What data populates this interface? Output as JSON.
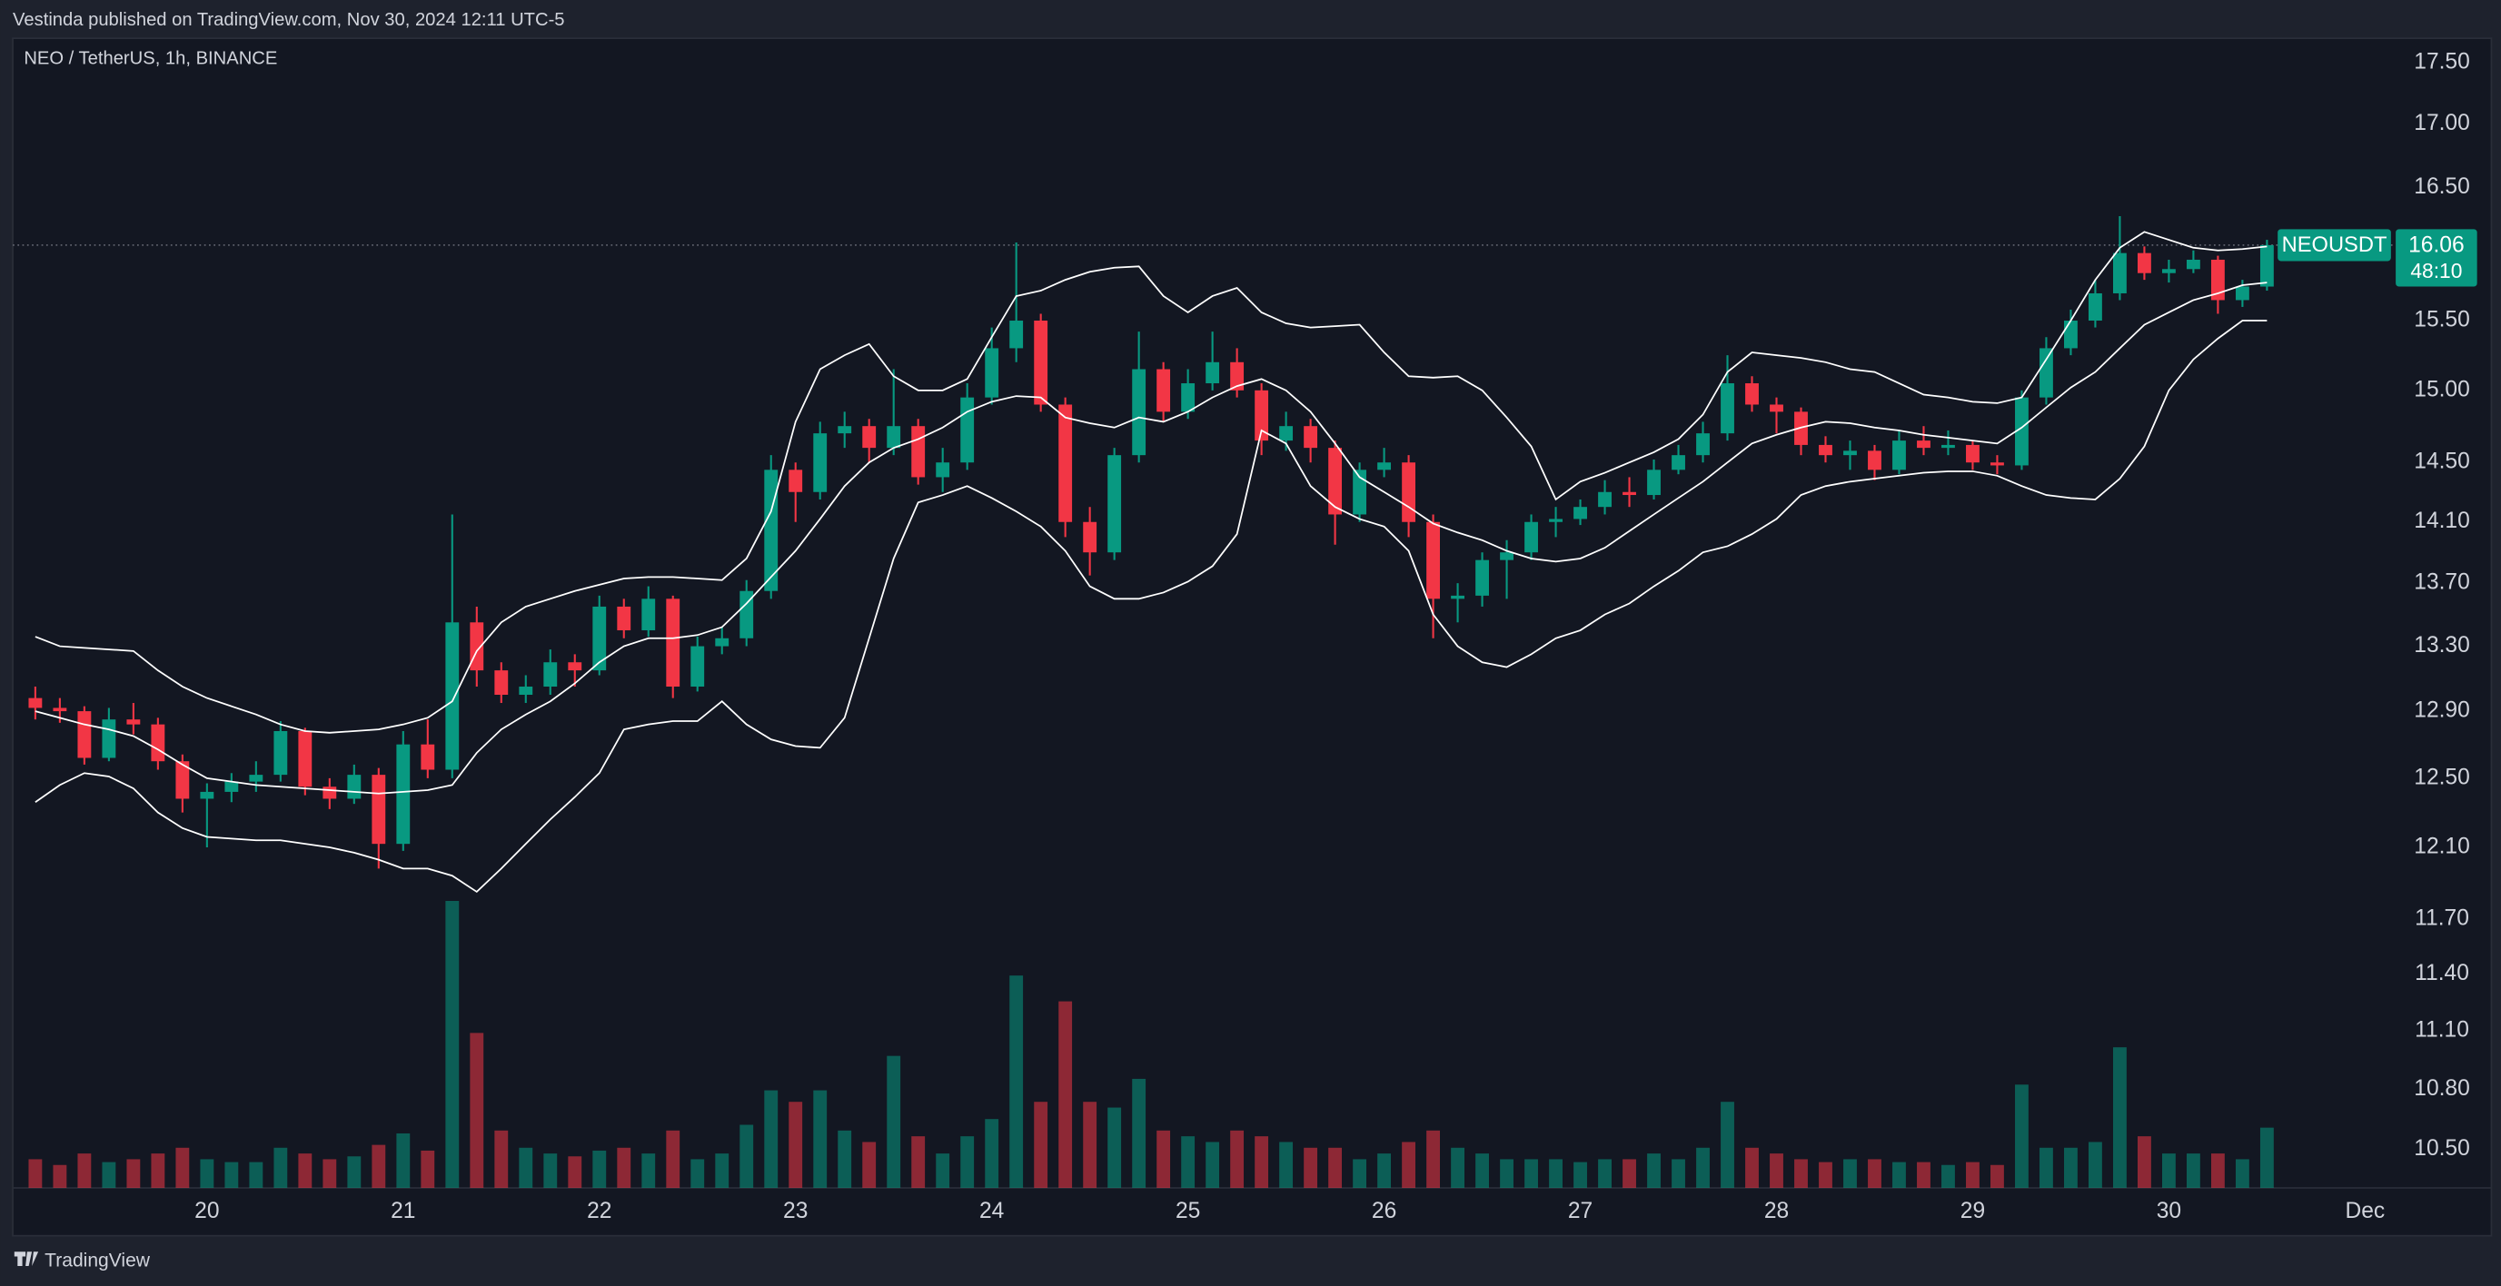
{
  "chart_data": {
    "type": "candlestick",
    "header": "Vestinda published on TradingView.com, Nov 30, 2024 12:11 UTC-5",
    "symbol_label": "NEO / TetherUS, 1h, BINANCE",
    "footer": "TradingView",
    "log_scale": true,
    "up_color": "#089981",
    "down_color": "#f23645",
    "band_color": "#ffffff",
    "xlim": [
      19.01,
      31.14
    ],
    "xticks": [
      {
        "value": 20,
        "label": "20"
      },
      {
        "value": 21,
        "label": "21"
      },
      {
        "value": 22,
        "label": "22"
      },
      {
        "value": 23,
        "label": "23"
      },
      {
        "value": 24,
        "label": "24"
      },
      {
        "value": 25,
        "label": "25"
      },
      {
        "value": 26,
        "label": "26"
      },
      {
        "value": 27,
        "label": "27"
      },
      {
        "value": 28,
        "label": "28"
      },
      {
        "value": 29,
        "label": "29"
      },
      {
        "value": 30,
        "label": "30"
      },
      {
        "value": 31,
        "label": "Dec"
      }
    ],
    "ylim": [
      10.31,
      17.7
    ],
    "yticks": [
      {
        "value": 17.5,
        "label": "17.50"
      },
      {
        "value": 17,
        "label": "17.00"
      },
      {
        "value": 16.5,
        "label": "16.50"
      },
      {
        "value": 15.5,
        "label": "15.50"
      },
      {
        "value": 15,
        "label": "15.00"
      },
      {
        "value": 14.5,
        "label": "14.50"
      },
      {
        "value": 14.1,
        "label": "14.10"
      },
      {
        "value": 13.7,
        "label": "13.70"
      },
      {
        "value": 13.3,
        "label": "13.30"
      },
      {
        "value": 12.9,
        "label": "12.90"
      },
      {
        "value": 12.5,
        "label": "12.50"
      },
      {
        "value": 12.1,
        "label": "12.10"
      },
      {
        "value": 11.7,
        "label": "11.70"
      },
      {
        "value": 11.4,
        "label": "11.40"
      },
      {
        "value": 11.1,
        "label": "11.10"
      },
      {
        "value": 10.8,
        "label": "10.80"
      },
      {
        "value": 10.5,
        "label": "10.50"
      }
    ],
    "volume_lim": [
      0,
      100
    ],
    "last_price": {
      "symbol": "NEOUSDT",
      "value": 16.06,
      "countdown": "48:10"
    },
    "x": [
      19.125,
      19.25,
      19.375,
      19.5,
      19.625,
      19.75,
      19.875,
      20,
      20.125,
      20.25,
      20.375,
      20.5,
      20.625,
      20.75,
      20.875,
      21,
      21.125,
      21.25,
      21.375,
      21.5,
      21.625,
      21.75,
      21.875,
      22,
      22.125,
      22.25,
      22.375,
      22.5,
      22.625,
      22.75,
      22.875,
      23,
      23.125,
      23.25,
      23.375,
      23.5,
      23.625,
      23.75,
      23.875,
      24,
      24.125,
      24.25,
      24.375,
      24.5,
      24.625,
      24.75,
      24.875,
      25,
      25.125,
      25.25,
      25.375,
      25.5,
      25.625,
      25.75,
      25.875,
      26,
      26.125,
      26.25,
      26.375,
      26.5,
      26.625,
      26.75,
      26.875,
      27,
      27.125,
      27.25,
      27.375,
      27.5,
      27.625,
      27.75,
      27.875,
      28,
      28.125,
      28.25,
      28.375,
      28.5,
      28.625,
      28.75,
      28.875,
      29,
      29.125,
      29.25,
      29.375,
      29.5,
      29.625,
      29.75,
      29.875,
      30,
      30.125,
      30.25,
      30.375,
      30.5
    ],
    "open": [
      12.98,
      12.92,
      12.9,
      12.62,
      12.85,
      12.82,
      12.6,
      12.38,
      12.42,
      12.48,
      12.52,
      12.78,
      12.45,
      12.38,
      12.52,
      12.12,
      12.7,
      12.55,
      13.45,
      13.15,
      13.0,
      13.05,
      13.2,
      13.15,
      13.55,
      13.4,
      13.6,
      13.05,
      13.3,
      13.35,
      13.65,
      14.45,
      14.3,
      14.7,
      14.75,
      14.6,
      14.75,
      14.4,
      14.5,
      14.95,
      15.3,
      15.5,
      14.9,
      14.1,
      13.9,
      14.55,
      15.15,
      14.85,
      15.05,
      15.2,
      15.0,
      14.65,
      14.75,
      14.6,
      14.15,
      14.45,
      14.5,
      14.1,
      13.6,
      13.62,
      13.85,
      13.9,
      14.1,
      14.12,
      14.2,
      14.3,
      14.28,
      14.45,
      14.55,
      14.7,
      15.05,
      14.9,
      14.85,
      14.62,
      14.55,
      14.58,
      14.45,
      14.65,
      14.6,
      14.62,
      14.5,
      14.48,
      14.95,
      15.3,
      15.5,
      15.7,
      16.0,
      15.85,
      15.88,
      15.95,
      15.65,
      15.75
    ],
    "high": [
      13.05,
      12.98,
      12.93,
      12.92,
      12.95,
      12.86,
      12.64,
      12.47,
      12.53,
      12.6,
      12.84,
      12.8,
      12.5,
      12.58,
      12.56,
      12.78,
      12.85,
      14.15,
      13.55,
      13.2,
      13.12,
      13.28,
      13.25,
      13.62,
      13.6,
      13.68,
      13.62,
      13.36,
      13.42,
      13.72,
      14.55,
      14.5,
      14.78,
      14.85,
      14.8,
      15.15,
      14.8,
      14.6,
      15.05,
      15.45,
      16.08,
      15.55,
      14.95,
      14.2,
      14.6,
      15.42,
      15.2,
      15.15,
      15.42,
      15.3,
      15.05,
      14.85,
      14.8,
      14.65,
      14.5,
      14.6,
      14.55,
      14.15,
      13.7,
      13.9,
      13.98,
      14.15,
      14.2,
      14.25,
      14.38,
      14.4,
      14.52,
      14.62,
      14.78,
      15.25,
      15.1,
      14.95,
      14.88,
      14.68,
      14.65,
      14.62,
      14.72,
      14.75,
      14.72,
      14.65,
      14.55,
      15.0,
      15.38,
      15.58,
      15.8,
      16.28,
      16.05,
      15.95,
      16.02,
      15.98,
      15.8,
      16.1
    ],
    "low": [
      12.85,
      12.83,
      12.58,
      12.6,
      12.76,
      12.55,
      12.3,
      12.1,
      12.36,
      12.42,
      12.48,
      12.4,
      12.32,
      12.35,
      11.98,
      12.08,
      12.5,
      12.5,
      13.05,
      12.95,
      12.95,
      13.0,
      13.05,
      13.12,
      13.35,
      13.36,
      12.98,
      13.02,
      13.25,
      13.3,
      13.6,
      14.1,
      14.25,
      14.6,
      14.5,
      14.55,
      14.35,
      14.3,
      14.45,
      14.9,
      15.2,
      14.85,
      14.0,
      13.75,
      13.85,
      14.5,
      14.78,
      14.8,
      15.0,
      14.95,
      14.55,
      14.58,
      14.5,
      13.95,
      14.1,
      14.4,
      14.0,
      13.35,
      13.45,
      13.55,
      13.6,
      13.85,
      14.0,
      14.08,
      14.15,
      14.2,
      14.25,
      14.42,
      14.5,
      14.65,
      14.85,
      14.7,
      14.55,
      14.5,
      14.45,
      14.38,
      14.42,
      14.55,
      14.55,
      14.45,
      14.42,
      14.45,
      14.9,
      15.25,
      15.45,
      15.65,
      15.8,
      15.78,
      15.85,
      15.55,
      15.6,
      15.72
    ],
    "close": [
      12.92,
      12.9,
      12.62,
      12.85,
      12.82,
      12.6,
      12.38,
      12.42,
      12.48,
      12.52,
      12.78,
      12.45,
      12.38,
      12.52,
      12.12,
      12.7,
      12.55,
      13.45,
      13.15,
      13.0,
      13.05,
      13.2,
      13.15,
      13.55,
      13.4,
      13.6,
      13.05,
      13.3,
      13.35,
      13.65,
      14.45,
      14.3,
      14.7,
      14.75,
      14.6,
      14.75,
      14.4,
      14.5,
      14.95,
      15.3,
      15.5,
      14.9,
      14.1,
      13.9,
      14.55,
      15.15,
      14.85,
      15.05,
      15.2,
      15.0,
      14.65,
      14.75,
      14.6,
      14.15,
      14.45,
      14.5,
      14.1,
      13.6,
      13.62,
      13.85,
      13.9,
      14.1,
      14.12,
      14.2,
      14.3,
      14.28,
      14.45,
      14.55,
      14.7,
      15.05,
      14.9,
      14.85,
      14.62,
      14.55,
      14.58,
      14.45,
      14.65,
      14.6,
      14.62,
      14.5,
      14.48,
      14.95,
      15.3,
      15.5,
      15.7,
      16.0,
      15.85,
      15.88,
      15.95,
      15.65,
      15.75,
      16.06
    ],
    "volume": [
      10,
      8,
      12,
      9,
      10,
      12,
      14,
      10,
      9,
      9,
      14,
      12,
      10,
      11,
      15,
      19,
      13,
      100,
      54,
      20,
      14,
      12,
      11,
      13,
      14,
      12,
      20,
      10,
      12,
      22,
      34,
      30,
      34,
      20,
      16,
      46,
      18,
      12,
      18,
      24,
      74,
      30,
      65,
      30,
      28,
      38,
      20,
      18,
      16,
      20,
      18,
      16,
      14,
      14,
      10,
      12,
      16,
      20,
      14,
      12,
      10,
      10,
      10,
      9,
      10,
      10,
      12,
      10,
      14,
      30,
      14,
      12,
      10,
      9,
      10,
      10,
      9,
      9,
      8,
      9,
      8,
      36,
      14,
      14,
      16,
      49,
      18,
      12,
      12,
      12,
      10,
      21
    ],
    "bollinger": {
      "upper": [
        13.36,
        13.3,
        13.29,
        13.28,
        13.27,
        13.15,
        13.05,
        12.98,
        12.93,
        12.88,
        12.82,
        12.78,
        12.77,
        12.78,
        12.79,
        12.82,
        12.86,
        12.96,
        13.27,
        13.45,
        13.55,
        13.6,
        13.65,
        13.69,
        13.73,
        13.74,
        13.74,
        13.73,
        13.72,
        13.86,
        14.17,
        14.78,
        15.15,
        15.25,
        15.33,
        15.1,
        15.0,
        15.0,
        15.08,
        15.38,
        15.68,
        15.72,
        15.8,
        15.86,
        15.89,
        15.9,
        15.68,
        15.56,
        15.68,
        15.74,
        15.56,
        15.48,
        15.45,
        15.46,
        15.47,
        15.27,
        15.1,
        15.09,
        15.1,
        15.0,
        14.81,
        14.61,
        14.25,
        14.37,
        14.43,
        14.5,
        14.57,
        14.66,
        14.83,
        15.13,
        15.27,
        15.25,
        15.23,
        15.2,
        15.15,
        15.13,
        15.05,
        14.97,
        14.95,
        14.92,
        14.91,
        14.95,
        15.22,
        15.5,
        15.8,
        16.04,
        16.16,
        16.1,
        16.04,
        16.02,
        16.03,
        16.05
      ],
      "middle": [
        12.9,
        12.86,
        12.82,
        12.79,
        12.75,
        12.67,
        12.58,
        12.5,
        12.48,
        12.46,
        12.45,
        12.44,
        12.43,
        12.42,
        12.41,
        12.42,
        12.43,
        12.46,
        12.65,
        12.79,
        12.88,
        12.96,
        13.07,
        13.2,
        13.3,
        13.35,
        13.35,
        13.37,
        13.42,
        13.57,
        13.74,
        13.91,
        14.12,
        14.34,
        14.5,
        14.6,
        14.66,
        14.74,
        14.85,
        14.92,
        14.96,
        14.95,
        14.81,
        14.77,
        14.74,
        14.81,
        14.78,
        14.85,
        14.95,
        15.03,
        15.08,
        15.0,
        14.85,
        14.63,
        14.4,
        14.3,
        14.2,
        14.09,
        14.03,
        13.98,
        13.91,
        13.86,
        13.84,
        13.86,
        13.93,
        14.04,
        14.15,
        14.26,
        14.37,
        14.5,
        14.63,
        14.69,
        14.74,
        14.78,
        14.77,
        14.74,
        14.72,
        14.69,
        14.67,
        14.65,
        14.63,
        14.74,
        14.88,
        15.02,
        15.13,
        15.3,
        15.47,
        15.56,
        15.65,
        15.7,
        15.76,
        15.78
      ],
      "lower": [
        12.36,
        12.46,
        12.53,
        12.51,
        12.44,
        12.3,
        12.21,
        12.16,
        12.15,
        12.14,
        12.14,
        12.12,
        12.1,
        12.07,
        12.03,
        11.98,
        11.98,
        11.94,
        11.85,
        11.98,
        12.12,
        12.26,
        12.39,
        12.53,
        12.79,
        12.82,
        12.84,
        12.84,
        12.96,
        12.82,
        12.73,
        12.69,
        12.68,
        12.86,
        13.35,
        13.86,
        14.23,
        14.28,
        14.34,
        14.26,
        14.17,
        14.07,
        13.91,
        13.68,
        13.6,
        13.6,
        13.64,
        13.71,
        13.81,
        14.02,
        14.72,
        14.63,
        14.34,
        14.2,
        14.12,
        14.07,
        13.91,
        13.5,
        13.3,
        13.2,
        13.17,
        13.25,
        13.35,
        13.4,
        13.5,
        13.57,
        13.68,
        13.78,
        13.9,
        13.94,
        14.02,
        14.12,
        14.28,
        14.34,
        14.37,
        14.39,
        14.41,
        14.43,
        14.44,
        14.44,
        14.41,
        14.34,
        14.28,
        14.26,
        14.25,
        14.39,
        14.61,
        15.0,
        15.22,
        15.37,
        15.5,
        15.5
      ]
    }
  }
}
